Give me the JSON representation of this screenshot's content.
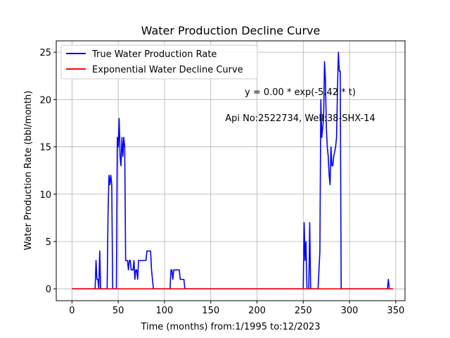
{
  "chart_data": {
    "type": "line",
    "title": "Water Production Decline Curve",
    "xlabel": "Time (months) from:1/1995 to:12/2023",
    "ylabel": "Water Production Rate (bbl/month)",
    "xlim": [
      -17,
      360
    ],
    "ylim": [
      -1.25,
      26.2
    ],
    "xticks": [
      0,
      50,
      100,
      150,
      200,
      250,
      300,
      350
    ],
    "yticks": [
      0,
      5,
      10,
      15,
      20,
      25
    ],
    "grid": true,
    "legend_position": "top-left",
    "annotations": [
      "y = 0.00 * exp(-5.42 * t)",
      "Api No:2522734, Well:38-SHX-14"
    ],
    "series": [
      {
        "name": "True Water Production Rate",
        "color": "#0000ff",
        "points": [
          [
            0,
            0
          ],
          [
            25,
            0
          ],
          [
            26,
            3
          ],
          [
            27,
            1
          ],
          [
            28,
            1
          ],
          [
            29,
            0
          ],
          [
            30,
            4
          ],
          [
            31,
            0
          ],
          [
            38,
            0
          ],
          [
            39,
            8
          ],
          [
            40,
            12
          ],
          [
            41,
            11
          ],
          [
            42,
            12
          ],
          [
            43,
            11
          ],
          [
            44,
            0
          ],
          [
            48,
            0
          ],
          [
            49,
            16
          ],
          [
            50,
            15
          ],
          [
            51,
            18
          ],
          [
            52,
            14
          ],
          [
            53,
            13
          ],
          [
            54,
            16
          ],
          [
            55,
            14
          ],
          [
            56,
            16
          ],
          [
            57,
            15
          ],
          [
            58,
            3
          ],
          [
            60,
            3
          ],
          [
            61,
            2
          ],
          [
            62,
            3
          ],
          [
            63,
            3
          ],
          [
            64,
            2
          ],
          [
            66,
            2
          ],
          [
            67,
            3
          ],
          [
            68,
            1
          ],
          [
            69,
            2
          ],
          [
            70,
            2
          ],
          [
            71,
            1
          ],
          [
            72,
            3
          ],
          [
            80,
            3
          ],
          [
            81,
            4
          ],
          [
            85,
            4
          ],
          [
            86,
            2
          ],
          [
            88,
            0
          ],
          [
            106,
            0
          ],
          [
            107,
            2
          ],
          [
            108,
            2
          ],
          [
            109,
            1
          ],
          [
            110,
            2
          ],
          [
            116,
            2
          ],
          [
            117,
            1
          ],
          [
            121,
            1
          ],
          [
            122,
            0
          ],
          [
            250,
            0
          ],
          [
            251,
            7
          ],
          [
            252,
            3
          ],
          [
            253,
            5
          ],
          [
            254,
            0
          ],
          [
            256,
            0
          ],
          [
            257,
            7
          ],
          [
            258,
            0
          ],
          [
            266,
            0
          ],
          [
            268,
            4
          ],
          [
            269,
            20
          ],
          [
            270,
            16
          ],
          [
            271,
            17
          ],
          [
            272,
            18
          ],
          [
            273,
            24
          ],
          [
            274,
            22
          ],
          [
            275,
            17
          ],
          [
            276,
            15
          ],
          [
            277,
            14
          ],
          [
            278,
            12
          ],
          [
            279,
            11
          ],
          [
            280,
            15
          ],
          [
            281,
            13
          ],
          [
            282,
            13
          ],
          [
            283,
            14
          ],
          [
            285,
            15
          ],
          [
            286,
            16
          ],
          [
            287,
            21
          ],
          [
            288,
            25
          ],
          [
            289,
            23
          ],
          [
            290,
            23
          ],
          [
            291,
            0
          ],
          [
            341,
            0
          ],
          [
            342,
            1
          ],
          [
            343,
            0
          ],
          [
            347,
            0
          ]
        ]
      },
      {
        "name": "Exponential Water Decline Curve",
        "color": "#ff0000",
        "points": [
          [
            0,
            0
          ],
          [
            347,
            0
          ]
        ]
      }
    ]
  }
}
